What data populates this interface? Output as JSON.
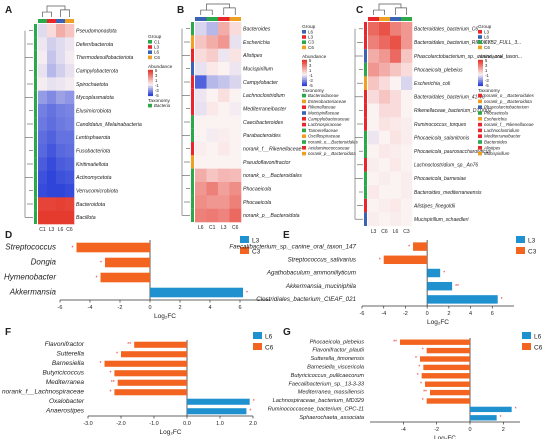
{
  "colors": {
    "green": "#2ba84a",
    "red": "#e8262b",
    "blue": "#3a62b5",
    "orange": "#f0a020",
    "bar_orange": "#f2641f",
    "bar_blue": "#1f91cf",
    "hm_red": "#e53b2f",
    "hm_white": "#fbf2f2",
    "hm_blue": "#2f45d9"
  },
  "heatmap_A": {
    "letter": "A",
    "samples": [
      "C1",
      "L3",
      "L6",
      "C6"
    ],
    "sample_colors": [
      "green",
      "red",
      "blue",
      "orange"
    ],
    "rows": [
      "Pseudomonadota",
      "Deferribacterota",
      "Thermodesulfobacteriota",
      "Campylobacterota",
      "Spirochaetota",
      "Mycoplasmatota",
      "Elusimicrobiota",
      "Candidatus_Melainabacteria",
      "Lentisphaerota",
      "Fusobacteriota",
      "Kiritimatiellota",
      "Actinomycetota",
      "Verrucomicrobiota",
      "Bacteroidota",
      "Bacillota"
    ],
    "row_colors": [
      "green",
      "green",
      "green",
      "green",
      "green",
      "green",
      "green",
      "green",
      "green",
      "green",
      "green",
      "green",
      "green",
      "green",
      "green"
    ],
    "values": [
      [
        -0.4,
        0.5,
        1.5,
        1.0
      ],
      [
        -0.2,
        -0.6,
        -0.4,
        -0.2
      ],
      [
        -0.1,
        -0.8,
        -0.4,
        -0.1
      ],
      [
        -0.3,
        -1.0,
        -0.6,
        -0.3
      ],
      [
        -0.1,
        -0.3,
        -0.2,
        -0.1
      ],
      [
        -1.5,
        -1.8,
        -1.4,
        -1.6
      ],
      [
        -2.0,
        -2.2,
        -2.0,
        -1.9
      ],
      [
        -2.1,
        -2.3,
        -2.1,
        -2.0
      ],
      [
        -2.3,
        -2.5,
        -2.2,
        -2.2
      ],
      [
        -2.4,
        -2.7,
        -2.4,
        -2.3
      ],
      [
        -2.6,
        -2.9,
        -2.6,
        -2.5
      ],
      [
        -2.8,
        -3.0,
        -2.8,
        -2.7
      ],
      [
        -2.9,
        -3.2,
        -3.0,
        -2.9
      ],
      [
        3.8,
        3.8,
        3.9,
        3.8
      ],
      [
        4.2,
        4.5,
        4.4,
        4.2
      ]
    ],
    "legend": {
      "group_title": "Group",
      "groups": [
        "C1",
        "L3",
        "L6",
        "C6"
      ],
      "group_colors": [
        "green",
        "red",
        "blue",
        "orange"
      ],
      "abundance_title": "Abundance",
      "abundance_ticks": [
        "5",
        "3",
        "1",
        "-1",
        "-3",
        "-5"
      ],
      "taxonomy_title": "Taxonomy",
      "taxonomy": [
        "Bacteria"
      ],
      "taxonomy_colors": [
        "green"
      ]
    }
  },
  "heatmap_B": {
    "letter": "B",
    "samples": [
      "L6",
      "C1",
      "L3",
      "C6"
    ],
    "sample_colors": [
      "blue",
      "green",
      "red",
      "orange"
    ],
    "rows": [
      "Bacteroides",
      "Escherichia",
      "Alistipes",
      "Mucispirillum",
      "Campylobacter",
      "Lachnoclostridium",
      "Mediterraneibacter",
      "Caecibacteroides",
      "Parabacteroides",
      "norank_f__Rikenellaceae",
      "Pseudoflavonifractor",
      "norank_o__Bacteroidales",
      "Phocaeicola",
      "Phocaeicola",
      "norank_p__Bacteroidota"
    ],
    "row_colors": [
      "green",
      "orange",
      "red",
      "blue",
      "red",
      "red",
      "red",
      "green",
      "green",
      "red",
      "orange",
      "green",
      "green",
      "green",
      "green"
    ],
    "values": [
      [
        -0.5,
        -1.0,
        1.5,
        0.5
      ],
      [
        1.0,
        1.5,
        2.0,
        -0.3
      ],
      [
        0.5,
        0.8,
        -0.2,
        0.3
      ],
      [
        -0.3,
        0.2,
        0.0,
        -0.2
      ],
      [
        -2.5,
        -1.0,
        -0.8,
        -0.5
      ],
      [
        -0.2,
        0.0,
        0.4,
        0.0
      ],
      [
        -0.3,
        0.2,
        0.0,
        -0.1
      ],
      [
        0.0,
        0.0,
        0.0,
        0.0
      ],
      [
        0.0,
        -0.1,
        0.1,
        0.0
      ],
      [
        0.1,
        0.0,
        0.2,
        0.0
      ],
      [
        0.0,
        0.0,
        0.0,
        0.0
      ],
      [
        1.5,
        1.0,
        1.3,
        1.2
      ],
      [
        2.0,
        2.5,
        1.8,
        2.2
      ],
      [
        2.2,
        2.0,
        2.0,
        2.5
      ],
      [
        2.5,
        2.6,
        2.4,
        3.0
      ]
    ],
    "legend": {
      "group_title": "Group",
      "groups": [
        "L6",
        "L3",
        "C3",
        "C6"
      ],
      "group_colors": [
        "blue",
        "red",
        "green",
        "orange"
      ],
      "abundance_title": "Abundance",
      "abundance_ticks": [
        "5",
        "3",
        "1",
        "-1",
        "-3",
        "-5"
      ],
      "taxonomy_title": "Taxonomy",
      "taxonomy": [
        "Bacteroidaceae",
        "Enterobacteriaceae",
        "Rikenellaceae",
        "Mucispirillaceae",
        "Campylobacteraceae",
        "Lachnospiraceae",
        "Tannerellaceae",
        "Oscillospiraceae",
        "norank_o__Bacteroidales",
        "Acidaminococcaceae",
        "norank_p__Bacteroidota"
      ],
      "taxonomy_colors": [
        "green",
        "orange",
        "red",
        "blue",
        "red",
        "red",
        "green",
        "orange",
        "green",
        "red",
        "orange"
      ]
    }
  },
  "heatmap_C": {
    "letter": "C",
    "samples": [
      "L3",
      "C6",
      "L6",
      "C3"
    ],
    "sample_colors": [
      "red",
      "orange",
      "blue",
      "green"
    ],
    "rows": [
      "Bacteroidales_bacterium_C6",
      "Bacteroidales_bacterium_RIFOXYB2_FULL_3...",
      "Phascolarctobacterium_sp._canine_oral_taxon...",
      "Phocaeicola_plebeius",
      "Escherichia_coli",
      "Bacteroidales_bacterium_41-46",
      "Rikenellaceae_bacterium_DTU002",
      "Ruminococcus_torques",
      "Phocaeicola_salanitronis",
      "Phocaeicola_paurosaccharolyticus",
      "Lachnoclostridium_sp._An76",
      "Phocaeicola_barnesiae",
      "Bacteroides_mediterraneensis",
      "Alistipes_finegoldii",
      "Mucispirillum_schaedleri"
    ],
    "row_colors": [
      "red",
      "red",
      "blue",
      "green",
      "orange",
      "red",
      "red",
      "red",
      "green",
      "green",
      "red",
      "green",
      "green",
      "red",
      "blue"
    ],
    "values": [
      [
        3.0,
        3.5,
        2.5,
        2.0
      ],
      [
        2.5,
        3.0,
        3.5,
        2.0
      ],
      [
        1.5,
        2.0,
        3.0,
        1.0
      ],
      [
        2.0,
        1.5,
        1.0,
        0.5
      ],
      [
        1.0,
        0.5,
        0.0,
        -0.5
      ],
      [
        0.5,
        1.0,
        0.5,
        0.0
      ],
      [
        0.0,
        0.5,
        0.5,
        0.0
      ],
      [
        0.0,
        0.3,
        0.2,
        0.1
      ],
      [
        -0.2,
        0.0,
        0.3,
        0.1
      ],
      [
        0.0,
        0.2,
        0.1,
        0.0
      ],
      [
        0.1,
        0.0,
        0.2,
        0.0
      ],
      [
        0.0,
        0.1,
        0.0,
        0.1
      ],
      [
        0.2,
        0.0,
        0.0,
        0.1
      ],
      [
        0.0,
        0.1,
        0.2,
        0.0
      ],
      [
        0.1,
        0.0,
        0.1,
        0.0
      ]
    ],
    "legend": {
      "group_title": "Group",
      "groups": [
        "L3",
        "L6",
        "C3",
        "C6"
      ],
      "group_colors": [
        "red",
        "blue",
        "green",
        "orange"
      ],
      "abundance_title": "Abundance",
      "abundance_ticks": [
        "5",
        "3",
        "1",
        "-1",
        "-3",
        "-5"
      ],
      "taxonomy_title": "Taxonomy",
      "taxonomy": [
        "norank_o__Bacteroidales",
        "norank_p__Bacteroidota",
        "Phascolarctobacterium",
        "Phocaeicola",
        "Escherichia",
        "norank_f__Rikenellaceae",
        "Lachnoclostridium",
        "Mediterraneibacter",
        "Bacteroides",
        "Alistipes",
        "Mucispirillum"
      ],
      "taxonomy_colors": [
        "red",
        "orange",
        "blue",
        "green",
        "orange",
        "red",
        "red",
        "red",
        "green",
        "red",
        "orange"
      ]
    }
  },
  "chart_data": [
    {
      "panel": "D",
      "type": "bar",
      "xlabel": "Log₂FC",
      "xlim": [
        -6,
        8
      ],
      "xticks": [
        -6,
        -4,
        -2,
        0,
        2,
        4,
        6
      ],
      "legend": [
        "L3",
        "C3"
      ],
      "legend_colors": [
        "bar_blue",
        "bar_orange"
      ],
      "categories": [
        "Streptococcus",
        "Dongia",
        "Hymenobacter",
        "Akkermansia"
      ],
      "values": [
        -4.9,
        -3.0,
        -3.3,
        6.2
      ],
      "stars": [
        "*",
        "*",
        "*",
        "*"
      ]
    },
    {
      "panel": "E",
      "type": "bar",
      "xlabel": "Log₂FC",
      "xlim": [
        -6,
        8
      ],
      "xticks": [
        -6,
        -4,
        -2,
        0,
        2,
        4,
        6
      ],
      "legend": [
        "L3",
        "C3"
      ],
      "legend_colors": [
        "bar_blue",
        "bar_orange"
      ],
      "categories": [
        "Faecalibacterium_sp._canine_oral_taxon_147",
        "Streptococcus_salivarius",
        "Agathobaculum_ammoniilyticum",
        "Akkermansia_muciniphila",
        "Clostridiales_bacterium_CIEAF_021"
      ],
      "values": [
        -1.3,
        -4.0,
        1.2,
        2.3,
        6.5
      ],
      "stars": [
        "*",
        "*",
        "*",
        "**",
        "*"
      ]
    },
    {
      "panel": "F",
      "type": "bar",
      "xlabel": "Log₂FC",
      "xlim": [
        -3.0,
        2.0
      ],
      "xticks": [
        -3.0,
        -2.0,
        -1.0,
        0.0,
        1.0,
        2.0
      ],
      "legend": [
        "L6",
        "C6"
      ],
      "legend_colors": [
        "bar_blue",
        "bar_orange"
      ],
      "categories": [
        "Flavonifractor",
        "Sutterella",
        "Barnesiella",
        "Butyricicoccus",
        "Mediterranea",
        "norank_f__Lachnospiraceae",
        "Oxalobacter",
        "Anaerostipes"
      ],
      "values": [
        -1.6,
        -2.0,
        -2.5,
        -2.2,
        -2.1,
        -2.2,
        1.9,
        1.8
      ],
      "stars": [
        "**",
        "*",
        "*",
        "*",
        "**",
        "*",
        "*",
        "*"
      ]
    },
    {
      "panel": "G",
      "type": "bar",
      "xlabel": "Log₂FC",
      "xlim": [
        -6,
        3
      ],
      "xticks": [
        -4,
        -2,
        0,
        2
      ],
      "legend": [
        "L6",
        "C6"
      ],
      "legend_colors": [
        "bar_blue",
        "bar_orange"
      ],
      "categories": [
        "Phocaeicola_plebeius",
        "Flavonifractor_plautii",
        "Sutterella_timonensis",
        "Barnesiella_viscericola",
        "Butyricicoccus_pullicaecorum",
        "Faecalibacterium_sp._13-3-33",
        "Mediterranea_massiliensis",
        "Lachnospiraceae_bacterium_MD329",
        "Ruminococcaceae_bacterium_CPC-11",
        "Sphaerochaeta_associata"
      ],
      "values": [
        -4.2,
        -2.6,
        -3.0,
        -2.8,
        -2.9,
        -2.7,
        -2.4,
        -2.6,
        2.5,
        1.6
      ],
      "stars": [
        "**",
        "*",
        "*",
        "*",
        "*",
        "*",
        "**",
        "*",
        "*",
        "*"
      ]
    }
  ]
}
